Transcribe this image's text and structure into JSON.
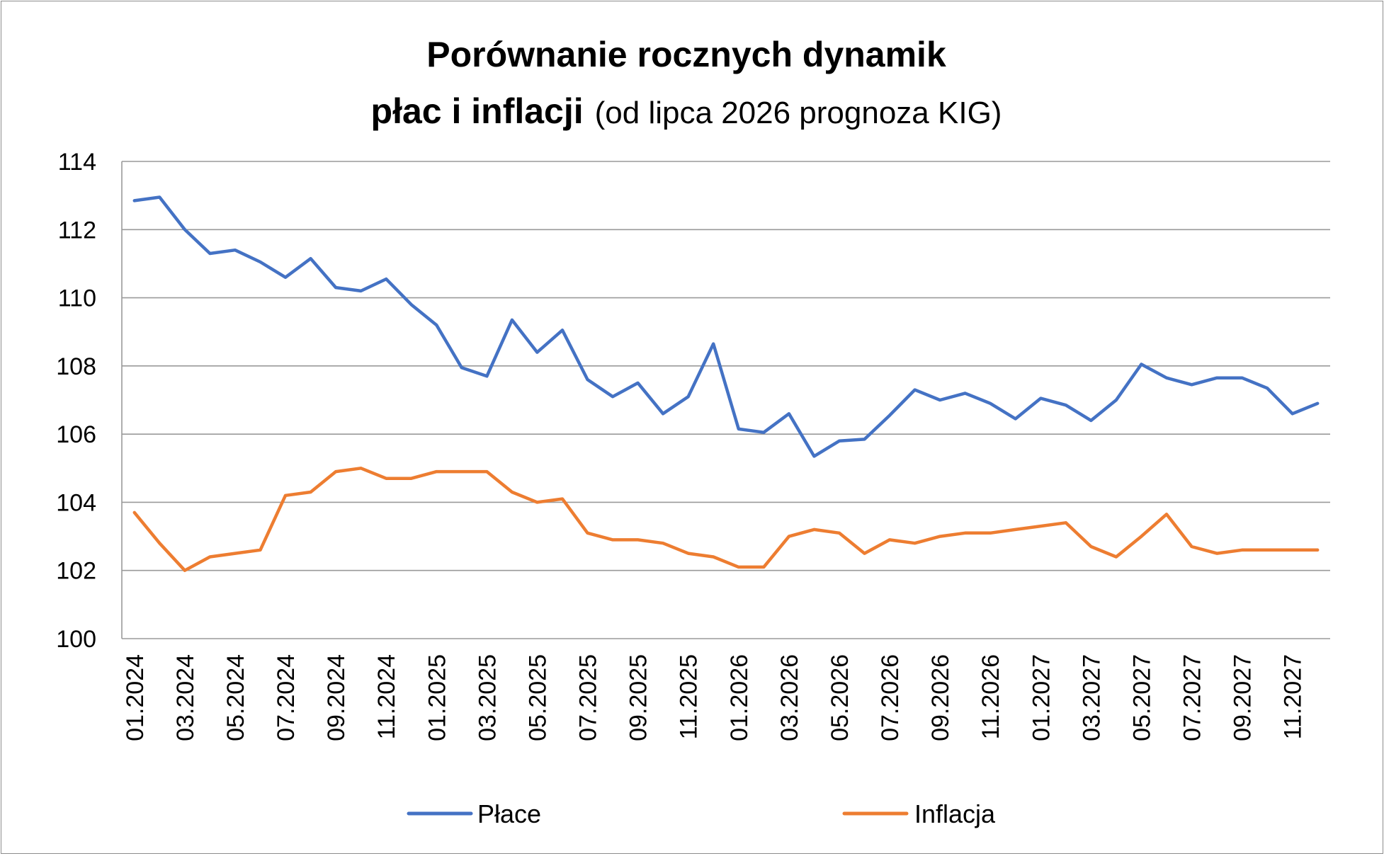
{
  "chart_data": {
    "type": "line",
    "title_line1": "Porównanie rocznych dynamik",
    "title_line2_bold": "płac i inflacji",
    "title_line2_normal": "(od lipca 2026 prognoza KIG)",
    "xlabel": "",
    "ylabel": "",
    "ylim": [
      100,
      114
    ],
    "yticks": [
      100,
      102,
      104,
      106,
      108,
      110,
      112,
      114
    ],
    "grid": true,
    "legend": "bottom",
    "x": [
      "01.2024",
      "02.2024",
      "03.2024",
      "04.2024",
      "05.2024",
      "06.2024",
      "07.2024",
      "08.2024",
      "09.2024",
      "10.2024",
      "11.2024",
      "12.2024",
      "01.2025",
      "02.2025",
      "03.2025",
      "04.2025",
      "05.2025",
      "06.2025",
      "07.2025",
      "08.2025",
      "09.2025",
      "10.2025",
      "11.2025",
      "12.2025",
      "01.2026",
      "02.2026",
      "03.2026",
      "04.2026",
      "05.2026",
      "06.2026",
      "07.2026",
      "08.2026",
      "09.2026",
      "10.2026",
      "11.2026",
      "12.2026",
      "01.2027",
      "02.2027",
      "03.2027",
      "04.2027",
      "05.2027",
      "06.2027",
      "07.2027",
      "08.2027",
      "09.2027",
      "10.2027",
      "11.2027",
      "12.2027"
    ],
    "xtick_labels": [
      "01.2024",
      "03.2024",
      "05.2024",
      "07.2024",
      "09.2024",
      "11.2024",
      "01.2025",
      "03.2025",
      "05.2025",
      "07.2025",
      "09.2025",
      "11.2025",
      "01.2026",
      "03.2026",
      "05.2026",
      "07.2026",
      "09.2026",
      "11.2026",
      "01.2027",
      "03.2027",
      "05.2027",
      "07.2027",
      "09.2027",
      "11.2027"
    ],
    "series": [
      {
        "name": "Płace",
        "color": "#4472c4",
        "values": [
          112.85,
          112.95,
          112.0,
          111.3,
          111.4,
          111.05,
          110.6,
          111.15,
          110.3,
          110.2,
          110.55,
          109.8,
          109.2,
          107.95,
          107.7,
          109.35,
          108.4,
          109.05,
          107.6,
          107.1,
          107.5,
          106.6,
          107.1,
          108.65,
          106.15,
          106.05,
          106.6,
          105.35,
          105.8,
          105.85,
          106.55,
          107.3,
          107.0,
          107.2,
          106.9,
          106.45,
          107.05,
          106.85,
          106.4,
          107.0,
          108.05,
          107.65,
          107.45,
          107.65,
          107.65,
          107.35,
          106.6,
          106.9
        ]
      },
      {
        "name": "Inflacja",
        "color": "#ed7d31",
        "values": [
          103.7,
          102.8,
          102.0,
          102.4,
          102.5,
          102.6,
          104.2,
          104.3,
          104.9,
          105.0,
          104.7,
          104.7,
          104.9,
          104.9,
          104.9,
          104.3,
          104.0,
          104.1,
          103.1,
          102.9,
          102.9,
          102.8,
          102.5,
          102.4,
          102.1,
          102.1,
          103.0,
          103.2,
          103.1,
          102.5,
          102.9,
          102.8,
          103.0,
          103.1,
          103.1,
          103.2,
          103.3,
          103.4,
          102.7,
          102.4,
          103.0,
          103.65,
          102.7,
          102.5,
          102.6,
          102.6,
          102.6,
          102.6
        ]
      }
    ]
  }
}
